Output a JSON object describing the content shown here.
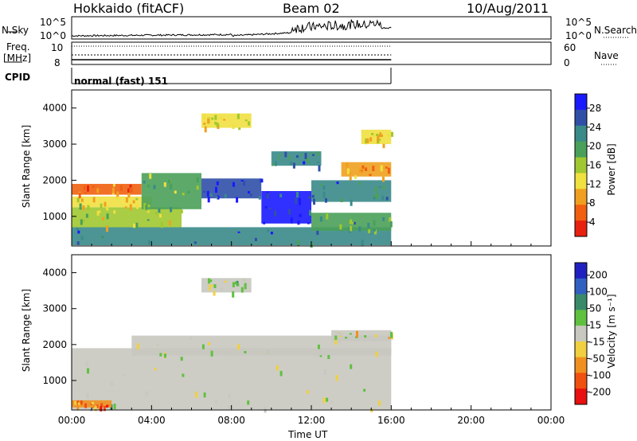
{
  "header": {
    "station": "Hokkaido (fitACF)",
    "beam": "Beam 02",
    "date": "10/Aug/2011"
  },
  "top_panels": {
    "nsky": {
      "label": "N.Sky",
      "ticks": [
        "10^5",
        "10^0"
      ]
    },
    "nsearch": {
      "label": "N.Search",
      "ticks": [
        "10^5",
        "10^0"
      ]
    },
    "freq": {
      "label_1": "Freq.",
      "label_2": "[MHz]",
      "ticks": [
        "10",
        "8"
      ]
    },
    "nave": {
      "label": "Nave",
      "ticks": [
        "60",
        "0"
      ]
    },
    "cpid": {
      "label": "CPID",
      "value": "normal (fast) 151"
    }
  },
  "colors": {
    "power_scale": [
      "#1a1aff",
      "#3050a8",
      "#3a8a8a",
      "#4aa05a",
      "#a0c830",
      "#f0e040",
      "#f0a020",
      "#f06010",
      "#e82010"
    ],
    "velocity_scale": [
      "#2020c0",
      "#3060c0",
      "#3a8a6a",
      "#60c040",
      "#c8c8c0",
      "#f0d040",
      "#f09020",
      "#f05010",
      "#e81010"
    ]
  },
  "chart_data": [
    {
      "type": "heatmap",
      "panel": "power",
      "ylabel": "Slant Range [km]",
      "xlabel": "",
      "xlim": [
        0,
        24
      ],
      "ylim": [
        180,
        4500
      ],
      "x_ticks": [],
      "y_ticks": [
        "1000",
        "2000",
        "3000",
        "4000"
      ],
      "y_tick_values": [
        1000,
        2000,
        3000,
        4000
      ],
      "data_end_hour": 16,
      "colorbar": {
        "label": "Power [dB]",
        "ticks": [
          "28",
          "24",
          "20",
          "16",
          "12",
          "8",
          "4"
        ],
        "range": [
          0,
          30
        ]
      },
      "bands": [
        {
          "t0": 0.0,
          "t1": 16.0,
          "r0": 200,
          "r1": 700,
          "level": 22
        },
        {
          "t0": 0.0,
          "t1": 5.5,
          "r0": 700,
          "r1": 1250,
          "level": 14
        },
        {
          "t0": 0.0,
          "t1": 4.0,
          "r0": 1250,
          "r1": 1550,
          "level": 12
        },
        {
          "t0": 0.0,
          "t1": 3.5,
          "r0": 1600,
          "r1": 1900,
          "level": 6
        },
        {
          "t0": 3.5,
          "t1": 6.5,
          "r0": 1200,
          "r1": 2200,
          "level": 17
        },
        {
          "t0": 6.5,
          "t1": 9.5,
          "r0": 1500,
          "r1": 2050,
          "level": 26
        },
        {
          "t0": 9.5,
          "t1": 12.0,
          "r0": 800,
          "r1": 1700,
          "level": 27
        },
        {
          "t0": 12.0,
          "t1": 16.0,
          "r0": 1400,
          "r1": 2000,
          "level": 23
        },
        {
          "t0": 12.0,
          "t1": 16.0,
          "r0": 600,
          "r1": 1100,
          "level": 19
        },
        {
          "t0": 6.5,
          "t1": 9.0,
          "r0": 3450,
          "r1": 3850,
          "level": 12
        },
        {
          "t0": 10.0,
          "t1": 12.5,
          "r0": 2400,
          "r1": 2800,
          "level": 22
        },
        {
          "t0": 13.5,
          "t1": 16.0,
          "r0": 2100,
          "r1": 2500,
          "level": 9
        },
        {
          "t0": 14.5,
          "t1": 16.0,
          "r0": 3000,
          "r1": 3400,
          "level": 12
        }
      ]
    },
    {
      "type": "heatmap",
      "panel": "velocity",
      "ylabel": "Slant Range [km]",
      "xlabel": "Time UT",
      "xlim": [
        0,
        24
      ],
      "ylim": [
        180,
        4500
      ],
      "x_ticks": [
        "00:00",
        "04:00",
        "08:00",
        "12:00",
        "16:00",
        "20:00",
        "00:00"
      ],
      "x_tick_values": [
        0,
        4,
        8,
        12,
        16,
        20,
        24
      ],
      "y_ticks": [
        "1000",
        "2000",
        "3000",
        "4000"
      ],
      "y_tick_values": [
        1000,
        2000,
        3000,
        4000
      ],
      "data_end_hour": 16,
      "colorbar": {
        "label": "Velocity [m s⁻¹]",
        "ticks": [
          "200",
          "100",
          "50",
          "15",
          "-15",
          "-50",
          "-100",
          "-200"
        ],
        "range": [
          -250,
          250
        ]
      },
      "bands": [
        {
          "t0": 0.0,
          "t1": 16.0,
          "r0": 200,
          "r1": 700,
          "level": 25
        },
        {
          "t0": 0.0,
          "t1": 16.0,
          "r0": 700,
          "r1": 1900,
          "level": 0
        },
        {
          "t0": 3.0,
          "t1": 16.0,
          "r0": 1700,
          "r1": 2250,
          "level": 0
        },
        {
          "t0": 6.5,
          "t1": 9.0,
          "r0": 3450,
          "r1": 3850,
          "level": 0
        },
        {
          "t0": 0.0,
          "t1": 2.0,
          "r0": 250,
          "r1": 450,
          "level": -120
        },
        {
          "t0": 13.0,
          "t1": 16.0,
          "r0": 2100,
          "r1": 2400,
          "level": 0
        }
      ]
    }
  ]
}
